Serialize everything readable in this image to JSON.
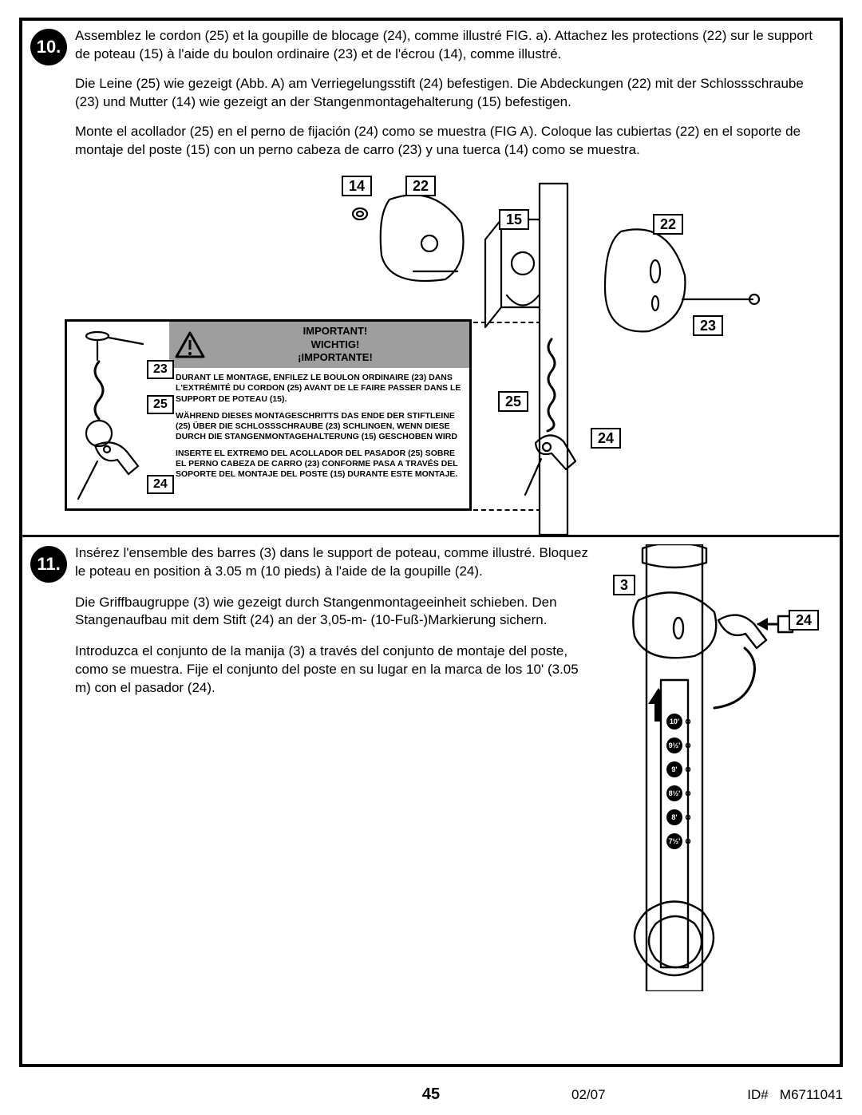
{
  "step10": {
    "number": "10.",
    "fr": "Assemblez le cordon (25) et la goupille de blocage (24), comme illustré FIG. a). Attachez les protections (22) sur le support de poteau (15) à l'aide du boulon ordinaire (23) et de l'écrou (14), comme illustré.",
    "de": "Die Leine (25) wie gezeigt (Abb. A) am Verriegelungsstift (24) befestigen. Die Abdeckungen (22) mit der Schlossschraube (23) und Mutter (14) wie gezeigt an der Stangenmontagehalterung (15) befestigen.",
    "es": "Monte el acollador (25) en el perno de fijación (24) como se muestra (FIG A). Coloque las cubiertas (22) en el soporte de montaje del poste (15) con un perno cabeza de carro (23) y una tuerca (14) como se muestra.",
    "callouts": {
      "c14": "14",
      "c22a": "22",
      "c15": "15",
      "c22b": "22",
      "c23": "23",
      "c25": "25",
      "c24": "24"
    },
    "inset": {
      "header_en": "IMPORTANT!",
      "header_de": "WICHTIG!",
      "header_es": "¡IMPORTANTE!",
      "fr": "DURANT LE MONTAGE, ENFILEZ LE BOULON ORDINAIRE (23) DANS L'EXTRÉMITÉ DU CORDON (25) AVANT DE LE FAIRE PASSER DANS LE SUPPORT DE POTEAU (15).",
      "de": "WÄHREND DIESES MONTAGESCHRITTS DAS ENDE DER STIFTLEINE (25) ÜBER DIE SCHLOSSSCHRAUBE (23) SCHLINGEN, WENN DIESE DURCH DIE STANGENMONTAGEHALTERUNG (15) GESCHOBEN WIRD",
      "es": "INSERTE EL EXTREMO DEL ACOLLADOR DEL PASADOR (25) SOBRE EL PERNO CABEZA DE CARRO (23) CONFORME PASA A TRAVÉS DEL SOPORTE DEL MONTAJE DEL POSTE (15) DURANTE ESTE MONTAJE.",
      "callouts": {
        "c23": "23",
        "c25": "25",
        "c24": "24"
      }
    }
  },
  "step11": {
    "number": "11.",
    "fr": "Insérez l'ensemble des barres (3) dans le support de poteau, comme illustré. Bloquez le poteau en position à 3.05 m (10 pieds) à l'aide de la goupille (24).",
    "de": "Die Griffbaugruppe (3) wie gezeigt durch Stangenmontageeinheit schieben. Den Stangenaufbau mit dem Stift (24) an der 3,05-m- (10-Fuß-)Markierung sichern.",
    "es": "Introduzca el conjunto de la manija (3) a través del conjunto de montaje del poste, como se muestra. Fije el conjunto del poste en su lugar en la marca de los 10' (3.05 m) con el pasador (24).",
    "callouts": {
      "c3": "3",
      "c24": "24"
    },
    "height_marks": [
      "10'",
      "9½'",
      "9'",
      "8½'",
      "8'",
      "7½'"
    ]
  },
  "footer": {
    "page": "45",
    "date": "02/07",
    "id_label": "ID#",
    "id_value": "M6711041"
  },
  "colors": {
    "ink": "#000000",
    "paper": "#ffffff",
    "grey": "#9e9e9e",
    "warn": "#000000"
  }
}
